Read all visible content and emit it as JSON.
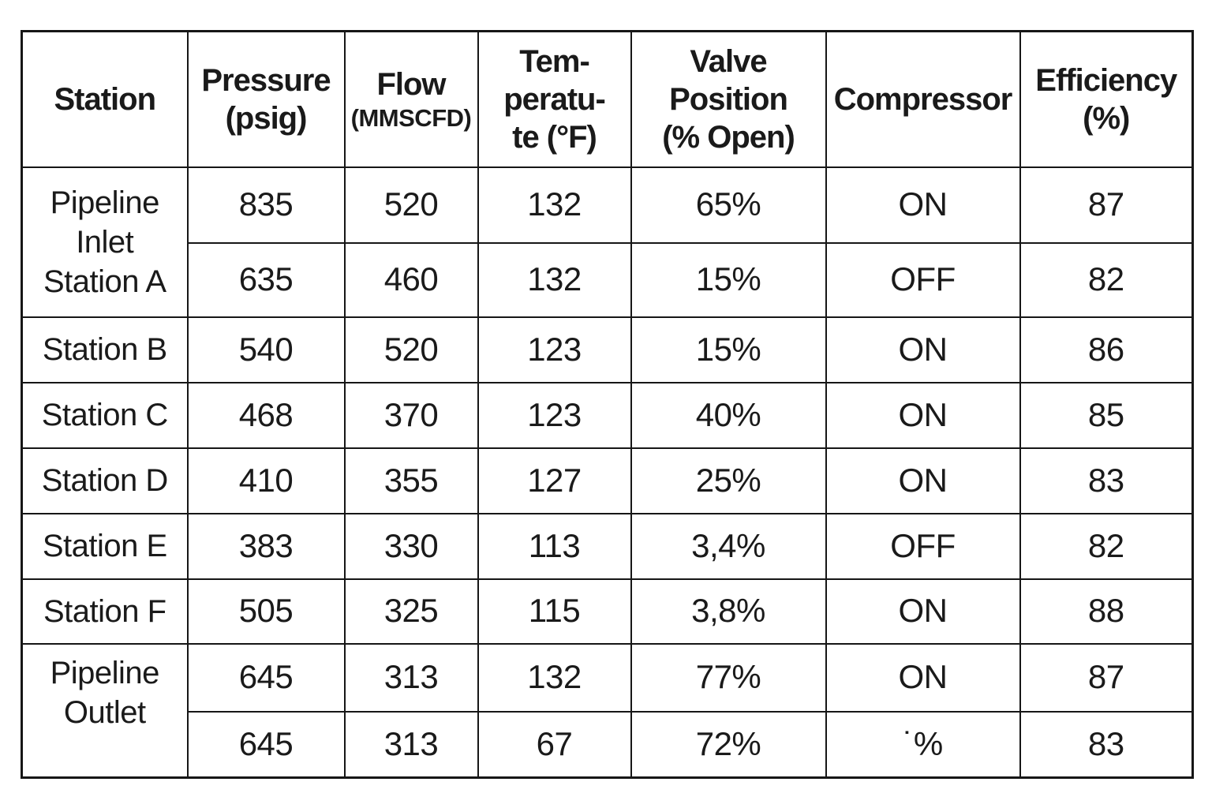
{
  "page": {
    "background": "#ffffff",
    "border_color": "#161616",
    "text_color": "#1a1a1a"
  },
  "table": {
    "header": {
      "cols": [
        {
          "id": "station",
          "title": "Station",
          "unit": ""
        },
        {
          "id": "pressure",
          "title": "Pressure",
          "unit": "(psig)"
        },
        {
          "id": "flow",
          "title": "Flow",
          "unit": "(MMSCFD)"
        },
        {
          "id": "temperature",
          "title": "Tem-\nperatu-\nte (°F)",
          "unit": ""
        },
        {
          "id": "valve_position",
          "title": "Valve\nPosition",
          "unit": "(% Open)"
        },
        {
          "id": "compressor",
          "title": "Compressor",
          "unit": ""
        },
        {
          "id": "efficiency",
          "title": "Efficiency",
          "unit": "(%)"
        }
      ]
    },
    "rows": [
      {
        "station": "Pipeline Inlet\nStation A",
        "station_rowspan": 2,
        "pressure": "835",
        "flow": "520",
        "temperature": "132",
        "valve_position": "65%",
        "compressor": "ON",
        "efficiency": "87"
      },
      {
        "station": null,
        "pressure": "635",
        "flow": "460",
        "temperature": "132",
        "valve_position": "15%",
        "compressor": "OFF",
        "efficiency": "82"
      },
      {
        "station": "Station B",
        "station_rowspan": 1,
        "pressure": "540",
        "flow": "520",
        "temperature": "123",
        "valve_position": "15%",
        "compressor": "ON",
        "efficiency": "86"
      },
      {
        "station": "Station C",
        "station_rowspan": 1,
        "pressure": "468",
        "flow": "370",
        "temperature": "123",
        "valve_position": "40%",
        "compressor": "ON",
        "efficiency": "85"
      },
      {
        "station": "Station D",
        "station_rowspan": 1,
        "pressure": "410",
        "flow": "355",
        "temperature": "127",
        "valve_position": "25%",
        "compressor": "ON",
        "efficiency": "83"
      },
      {
        "station": "Station E",
        "station_rowspan": 1,
        "pressure": "383",
        "flow": "330",
        "temperature": "113",
        "valve_position": "3,4%",
        "compressor": "OFF",
        "efficiency": "82"
      },
      {
        "station": "Station F",
        "station_rowspan": 1,
        "pressure": "505",
        "flow": "325",
        "temperature": "115",
        "valve_position": "3,8%",
        "compressor": "ON",
        "efficiency": "88"
      },
      {
        "station": "Pipeline Outlet",
        "station_rowspan": 2,
        "pressure": "645",
        "flow": "313",
        "temperature": "132",
        "valve_position": "77%",
        "compressor": "ON",
        "efficiency": "87"
      },
      {
        "station": null,
        "pressure": "645",
        "flow": "313",
        "temperature": "67",
        "valve_position": "72%",
        "compressor": "˙%",
        "efficiency": "83"
      }
    ]
  },
  "chart_data": {
    "type": "table",
    "title": "",
    "columns": [
      "Station",
      "Pressure (psig)",
      "Flow (MMSCFD)",
      "Tem-peratu-te (°F)",
      "Valve Position (% Open)",
      "Compressor",
      "Efficiency (%)"
    ],
    "rows": [
      [
        "Pipeline Inlet Station A",
        835,
        520,
        132,
        "65%",
        "ON",
        87
      ],
      [
        "Pipeline Inlet Station A",
        635,
        460,
        132,
        "15%",
        "OFF",
        82
      ],
      [
        "Station B",
        540,
        520,
        123,
        "15%",
        "ON",
        86
      ],
      [
        "Station C",
        468,
        370,
        123,
        "40%",
        "ON",
        85
      ],
      [
        "Station D",
        410,
        355,
        127,
        "25%",
        "ON",
        83
      ],
      [
        "Station E",
        383,
        330,
        113,
        "3,4%",
        "OFF",
        82
      ],
      [
        "Station F",
        505,
        325,
        115,
        "3,8%",
        "ON",
        88
      ],
      [
        "Pipeline Outlet",
        645,
        313,
        132,
        "77%",
        "ON",
        87
      ],
      [
        "Pipeline Outlet",
        645,
        313,
        67,
        "72%",
        "˙%",
        83
      ]
    ]
  }
}
